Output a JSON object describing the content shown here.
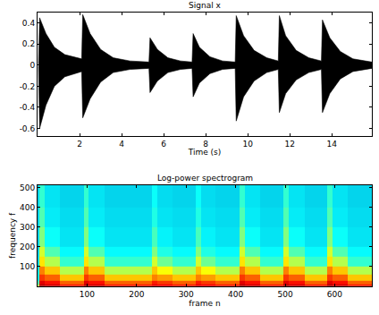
{
  "chart_data": [
    {
      "type": "line",
      "title": "Signal x",
      "x_label": "Time (s)",
      "x": [
        0.05,
        0.1,
        0.4,
        0.8,
        1.3,
        2.1,
        2.15,
        2.5,
        3.0,
        3.6,
        4.4,
        5.3,
        5.35,
        5.7,
        6.2,
        6.8,
        7.35,
        7.4,
        7.7,
        8.2,
        8.8,
        9.4,
        9.45,
        9.8,
        10.3,
        10.9,
        11.45,
        11.5,
        11.8,
        12.3,
        12.9,
        13.5,
        13.55,
        13.9,
        14.4,
        15.0,
        15.9
      ],
      "series": [
        {
          "color": "#000000",
          "values": [
            0.01,
            0.45,
            0.3,
            0.17,
            0.1,
            0.06,
            0.48,
            0.3,
            0.15,
            0.07,
            0.04,
            0.03,
            0.26,
            0.15,
            0.07,
            0.04,
            0.03,
            0.3,
            0.17,
            0.08,
            0.04,
            0.03,
            0.47,
            0.28,
            0.14,
            0.07,
            0.04,
            0.47,
            0.28,
            0.14,
            0.07,
            0.04,
            0.43,
            0.26,
            0.13,
            0.06,
            0.03
          ]
        },
        {
          "color": "#000000",
          "values": [
            -0.01,
            -0.6,
            -0.38,
            -0.2,
            -0.11,
            -0.06,
            -0.5,
            -0.32,
            -0.16,
            -0.07,
            -0.04,
            -0.03,
            -0.26,
            -0.15,
            -0.07,
            -0.04,
            -0.03,
            -0.3,
            -0.17,
            -0.08,
            -0.04,
            -0.03,
            -0.53,
            -0.3,
            -0.15,
            -0.07,
            -0.04,
            -0.45,
            -0.27,
            -0.14,
            -0.07,
            -0.04,
            -0.45,
            -0.27,
            -0.13,
            -0.06,
            -0.03
          ]
        }
      ],
      "xlim": [
        0,
        15.9
      ],
      "xticks": [
        2,
        4,
        6,
        8,
        10,
        12,
        14
      ],
      "ylim": [
        -0.67,
        0.5
      ],
      "yticks": [
        -0.6,
        -0.4,
        -0.2,
        0,
        0.2,
        0.4
      ],
      "grid": false
    },
    {
      "type": "heatmap",
      "title": "Log-power spectrogram",
      "x_label": "frame n",
      "y_label": "frequency f",
      "color": "Jet",
      "x_edges": [
        0,
        4,
        14,
        45,
        93,
        103,
        135,
        231,
        241,
        272,
        320,
        330,
        360,
        408,
        418,
        450,
        497,
        507,
        540,
        585,
        595,
        627,
        675
      ],
      "y_edges": [
        0,
        10,
        30,
        60,
        100,
        150,
        200,
        300,
        400,
        513
      ],
      "cells": [
        [
          -45,
          -5,
          -8,
          -15,
          -5,
          -8,
          -15,
          -10,
          -12,
          -15,
          -10,
          -12,
          -15,
          -5,
          -8,
          -15,
          -5,
          -8,
          -15,
          -5,
          -8,
          -15
        ],
        [
          -55,
          -10,
          -14,
          -22,
          -10,
          -14,
          -22,
          -15,
          -18,
          -22,
          -15,
          -18,
          -22,
          -10,
          -14,
          -22,
          -10,
          -14,
          -22,
          -10,
          -14,
          -22
        ],
        [
          -62,
          -18,
          -22,
          -32,
          -18,
          -22,
          -32,
          -25,
          -28,
          -32,
          -25,
          -28,
          -32,
          -18,
          -22,
          -32,
          -18,
          -22,
          -32,
          -18,
          -22,
          -32
        ],
        [
          -65,
          -25,
          -32,
          -45,
          -25,
          -32,
          -45,
          -32,
          -38,
          -45,
          -32,
          -38,
          -45,
          -25,
          -32,
          -45,
          -25,
          -32,
          -45,
          -25,
          -32,
          -45
        ],
        [
          -67,
          -35,
          -45,
          -58,
          -35,
          -45,
          -58,
          -42,
          -52,
          -58,
          -42,
          -52,
          -58,
          -35,
          -45,
          -58,
          -35,
          -45,
          -58,
          -35,
          -45,
          -58
        ],
        [
          -68,
          -42,
          -55,
          -63,
          -42,
          -55,
          -63,
          -50,
          -60,
          -63,
          -50,
          -60,
          -63,
          -42,
          -55,
          -63,
          -42,
          -55,
          -63,
          -42,
          -55,
          -63
        ],
        [
          -68,
          -50,
          -62,
          -66,
          -50,
          -62,
          -66,
          -56,
          -64,
          -66,
          -56,
          -64,
          -66,
          -50,
          -62,
          -66,
          -50,
          -62,
          -66,
          -50,
          -62,
          -66
        ],
        [
          -68,
          -55,
          -65,
          -67,
          -55,
          -65,
          -67,
          -60,
          -66,
          -67,
          -60,
          -66,
          -67,
          -55,
          -65,
          -67,
          -55,
          -65,
          -67,
          -55,
          -65,
          -67
        ],
        [
          -68,
          -58,
          -66,
          -68,
          -58,
          -66,
          -68,
          -62,
          -67,
          -68,
          -62,
          -67,
          -68,
          -58,
          -66,
          -68,
          -58,
          -66,
          -68,
          -58,
          -66,
          -68
        ]
      ],
      "zlim": [
        -100,
        0
      ],
      "xlim": [
        0,
        675
      ],
      "xticks": [
        100,
        200,
        300,
        400,
        500,
        600
      ],
      "ylim": [
        0,
        513
      ],
      "yticks": [
        100,
        200,
        300,
        400,
        500
      ],
      "grid": false
    }
  ]
}
